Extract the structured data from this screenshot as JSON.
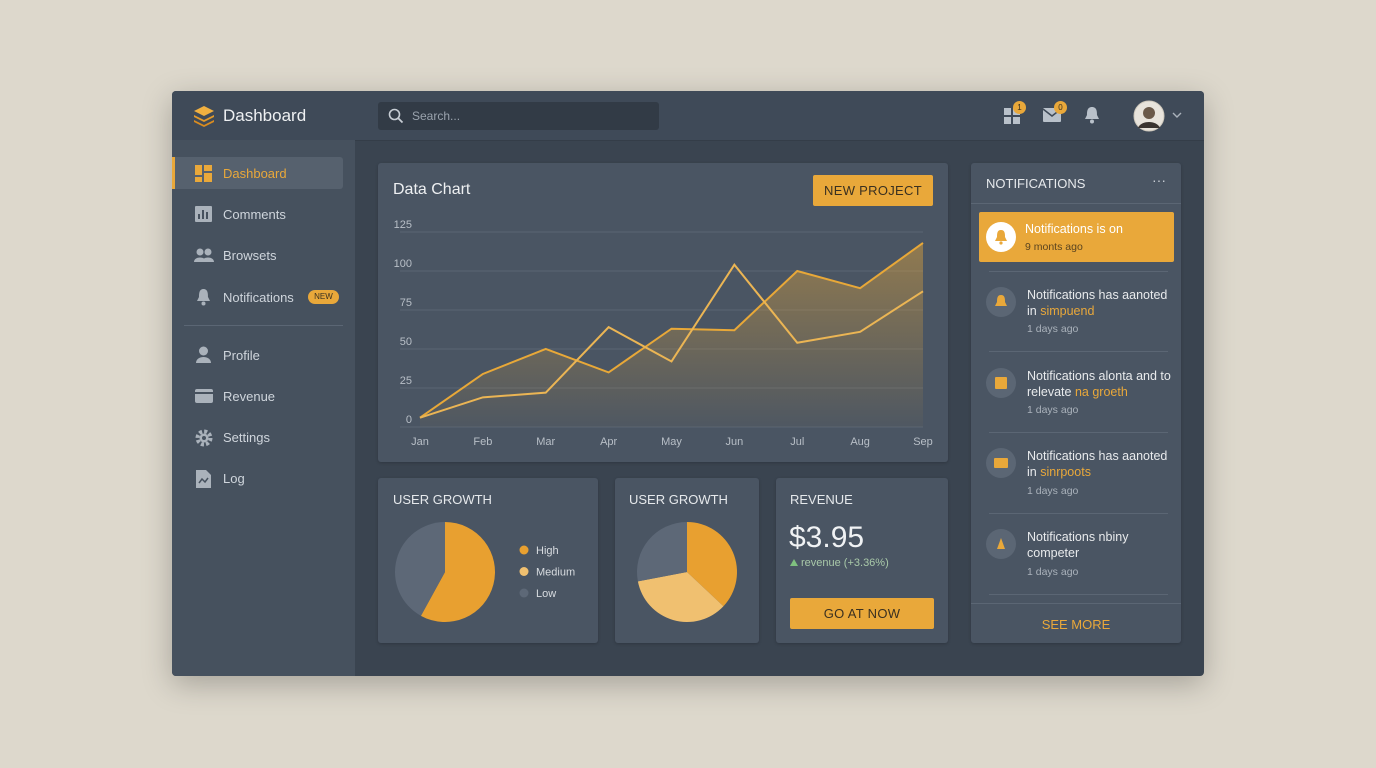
{
  "header": {
    "title": "Dashboard",
    "search_placeholder": "Search...",
    "badges": [
      "1",
      "0"
    ]
  },
  "sidebar": {
    "items": [
      "Dashboard",
      "Comments",
      "Browsets",
      "Notifications",
      "Profile",
      "Revenue",
      "Settings",
      "Log"
    ],
    "new_badge": "NEW"
  },
  "data_chart_card": {
    "title": "Data Chart",
    "button": "NEW PROJECT"
  },
  "pie_cards": [
    {
      "title": "USER GROWTH"
    },
    {
      "title": "USER GROWTH"
    }
  ],
  "revenue_card": {
    "title": "REVENUE",
    "amount": "$3.95",
    "trend": "revenue (+3.36%)",
    "button": "GO AT NOW"
  },
  "chart_data": [
    {
      "type": "line",
      "x": [
        "Jan",
        "Feb",
        "Mar",
        "Apr",
        "May",
        "Jun",
        "Jul",
        "Aug",
        "Sep"
      ],
      "ylim": [
        0,
        125
      ],
      "yticks": [
        0,
        25,
        50,
        75,
        100,
        125
      ],
      "grid": true,
      "series": [
        {
          "color": "#e8a838",
          "values": [
            6,
            34,
            50,
            35,
            63,
            62,
            100,
            89,
            118
          ]
        },
        {
          "color": "#ebb554",
          "values": [
            6,
            19,
            22,
            64,
            42,
            104,
            54,
            61,
            87
          ]
        }
      ]
    },
    {
      "type": "pie",
      "categories": [
        "High",
        "Medium",
        "Low"
      ],
      "values": [
        58,
        0,
        42
      ],
      "colors": [
        "#e8a030",
        "#f0c070",
        "#5d6877"
      ]
    },
    {
      "type": "pie",
      "values": [
        37,
        35,
        28
      ],
      "colors": [
        "#e8a030",
        "#f0c070",
        "#5d6877"
      ]
    }
  ],
  "notifications": {
    "title": "NOTIFICATIONS",
    "menu": "···",
    "see_more": "SEE MORE",
    "items": [
      {
        "text": "Notifications is on",
        "time": "9 monts ago"
      },
      {
        "text": "Notifications has aanoted in",
        "highlight": "simpuend",
        "time": "1 days ago"
      },
      {
        "text": "Notifications alonta and to relevate",
        "highlight": "na groeth",
        "time": "1 days ago"
      },
      {
        "text": "Notifications has aanoted in",
        "highlight": "sinrpoots",
        "time": "1 days ago"
      },
      {
        "text": "Notifications nbiny competer",
        "time": "1 days ago"
      }
    ]
  }
}
